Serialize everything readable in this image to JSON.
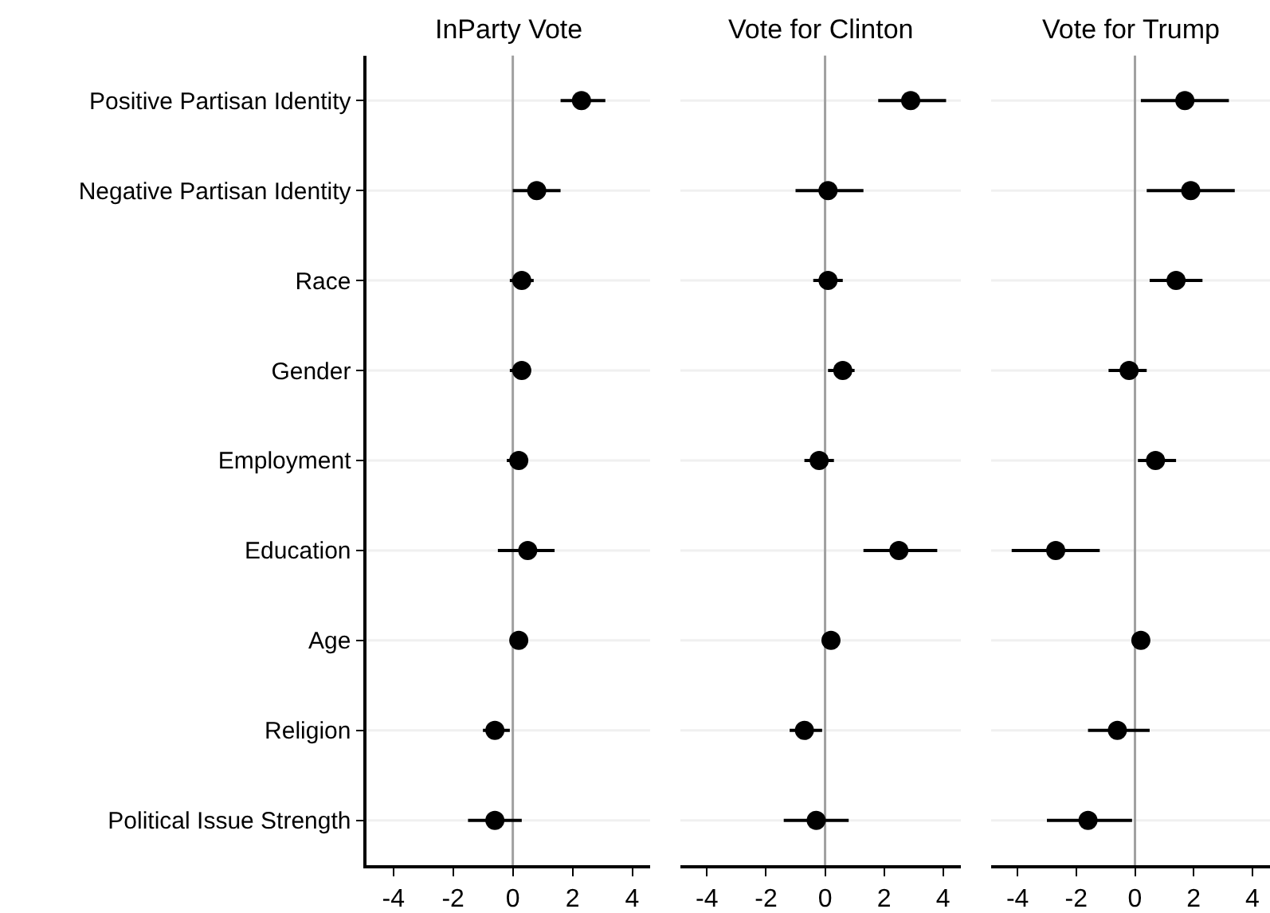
{
  "chart_data": [
    {
      "type": "scatter",
      "orientation": "horizontal",
      "title": "InParty Vote",
      "categories": [
        "Positive Partisan Identity",
        "Negative Partisan Identity",
        "Race",
        "Gender",
        "Employment",
        "Education",
        "Age",
        "Religion",
        "Political Issue Strength"
      ],
      "values": [
        2.3,
        0.8,
        0.3,
        0.3,
        0.2,
        0.5,
        0.2,
        -0.6,
        -0.6
      ],
      "errors": [
        [
          1.6,
          3.1
        ],
        [
          0.0,
          1.6
        ],
        [
          -0.1,
          0.7
        ],
        [
          -0.1,
          0.6
        ],
        [
          -0.2,
          0.5
        ],
        [
          -0.5,
          1.4
        ],
        null,
        [
          -1.0,
          -0.1
        ],
        [
          -1.5,
          0.3
        ]
      ],
      "color": "#000000",
      "marker": "circle",
      "xlim": [
        -4.9,
        4.6
      ],
      "xticks": [
        -4,
        -2,
        0,
        2,
        4
      ],
      "grid": "y",
      "ref_lines": [
        {
          "axis": "x",
          "value": 0,
          "color": "#a0a0a0"
        }
      ]
    },
    {
      "type": "scatter",
      "orientation": "horizontal",
      "title": "Vote for Clinton",
      "categories": [
        "Positive Partisan Identity",
        "Negative Partisan Identity",
        "Race",
        "Gender",
        "Employment",
        "Education",
        "Age",
        "Religion",
        "Political Issue Strength"
      ],
      "values": [
        2.9,
        0.1,
        0.1,
        0.6,
        -0.2,
        2.5,
        0.2,
        -0.7,
        -0.3
      ],
      "errors": [
        [
          1.8,
          4.1
        ],
        [
          -1.0,
          1.3
        ],
        [
          -0.4,
          0.6
        ],
        [
          0.1,
          1.0
        ],
        [
          -0.7,
          0.3
        ],
        [
          1.3,
          3.8
        ],
        null,
        [
          -1.2,
          -0.1
        ],
        [
          -1.4,
          0.8
        ]
      ],
      "color": "#000000",
      "marker": "circle",
      "xlim": [
        -4.9,
        4.6
      ],
      "xticks": [
        -4,
        -2,
        0,
        2,
        4
      ],
      "grid": "y",
      "tick_labels": "x",
      "ref_lines": [
        {
          "axis": "x",
          "value": 0,
          "color": "#a0a0a0"
        }
      ]
    },
    {
      "type": "scatter",
      "orientation": "horizontal",
      "title": "Vote for Trump",
      "categories": [
        "Positive Partisan Identity",
        "Negative Partisan Identity",
        "Race",
        "Gender",
        "Employment",
        "Education",
        "Age",
        "Religion",
        "Political Issue Strength"
      ],
      "values": [
        1.7,
        1.9,
        1.4,
        -0.2,
        0.7,
        -2.7,
        0.2,
        -0.6,
        -1.6
      ],
      "errors": [
        [
          0.2,
          3.2
        ],
        [
          0.4,
          3.4
        ],
        [
          0.5,
          2.3
        ],
        [
          -0.9,
          0.4
        ],
        [
          0.1,
          1.4
        ],
        [
          -4.2,
          -1.2
        ],
        null,
        [
          -1.6,
          0.5
        ],
        [
          -3.0,
          -0.1
        ]
      ],
      "color": "#000000",
      "marker": "circle",
      "xlim": [
        -4.9,
        4.6
      ],
      "xticks": [
        -4,
        -2,
        0,
        2,
        4
      ],
      "grid": "y",
      "tick_labels": "x",
      "ref_lines": [
        {
          "axis": "x",
          "value": 0,
          "color": "#a0a0a0"
        }
      ]
    }
  ]
}
